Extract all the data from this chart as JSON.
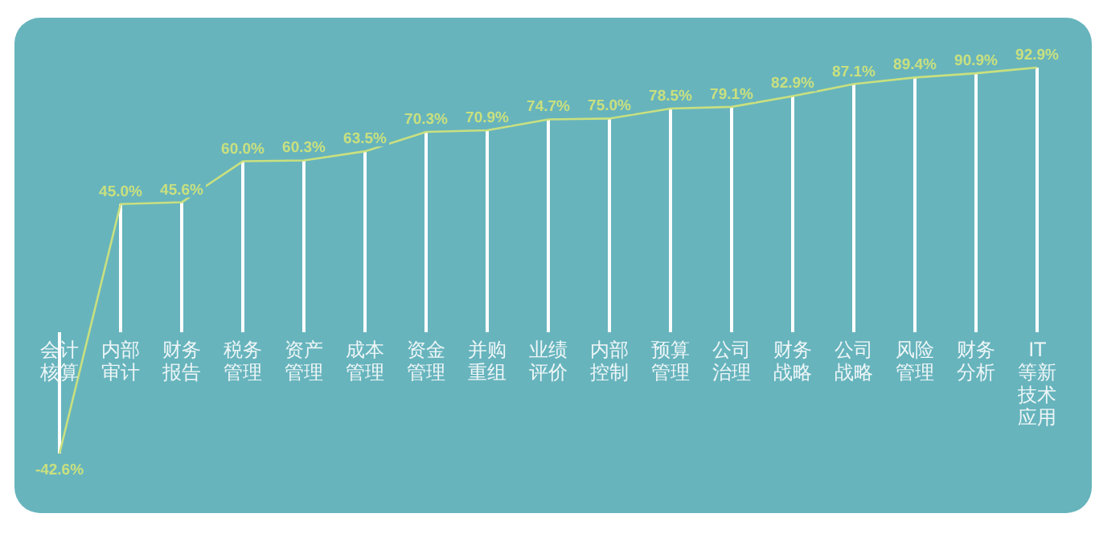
{
  "chart_data": {
    "type": "bar",
    "categories": [
      "会计核算",
      "内部审计",
      "财务报告",
      "税务管理",
      "资产管理",
      "成本管理",
      "资金管理",
      "并购重组",
      "业绩评价",
      "内部控制",
      "预算管理",
      "公司治理",
      "财务战略",
      "公司战略",
      "风险管理",
      "财务分析",
      "IT等新技术应用"
    ],
    "series": [
      {
        "color": "#ffffff",
        "values": [
          -42.6,
          45.0,
          45.6,
          60.0,
          60.3,
          63.5,
          70.3,
          70.9,
          74.7,
          75.0,
          78.5,
          79.1,
          82.9,
          87.1,
          89.4,
          90.9,
          92.9
        ]
      },
      {
        "type": "line",
        "color": "#c9e07f",
        "values": [
          -42.6,
          45.0,
          45.6,
          60.0,
          60.3,
          63.5,
          70.3,
          70.9,
          74.7,
          75.0,
          78.5,
          79.1,
          82.9,
          87.1,
          89.4,
          90.9,
          92.9
        ],
        "value_labels": [
          "-42.6%",
          "45.0%",
          "45.6%",
          "60.0%",
          "60.3%",
          "63.5%",
          "70.3%",
          "70.9%",
          "74.7%",
          "75.0%",
          "78.5%",
          "79.1%",
          "82.9%",
          "87.1%",
          "89.4%",
          "90.9%",
          "92.9%"
        ]
      }
    ]
  }
}
